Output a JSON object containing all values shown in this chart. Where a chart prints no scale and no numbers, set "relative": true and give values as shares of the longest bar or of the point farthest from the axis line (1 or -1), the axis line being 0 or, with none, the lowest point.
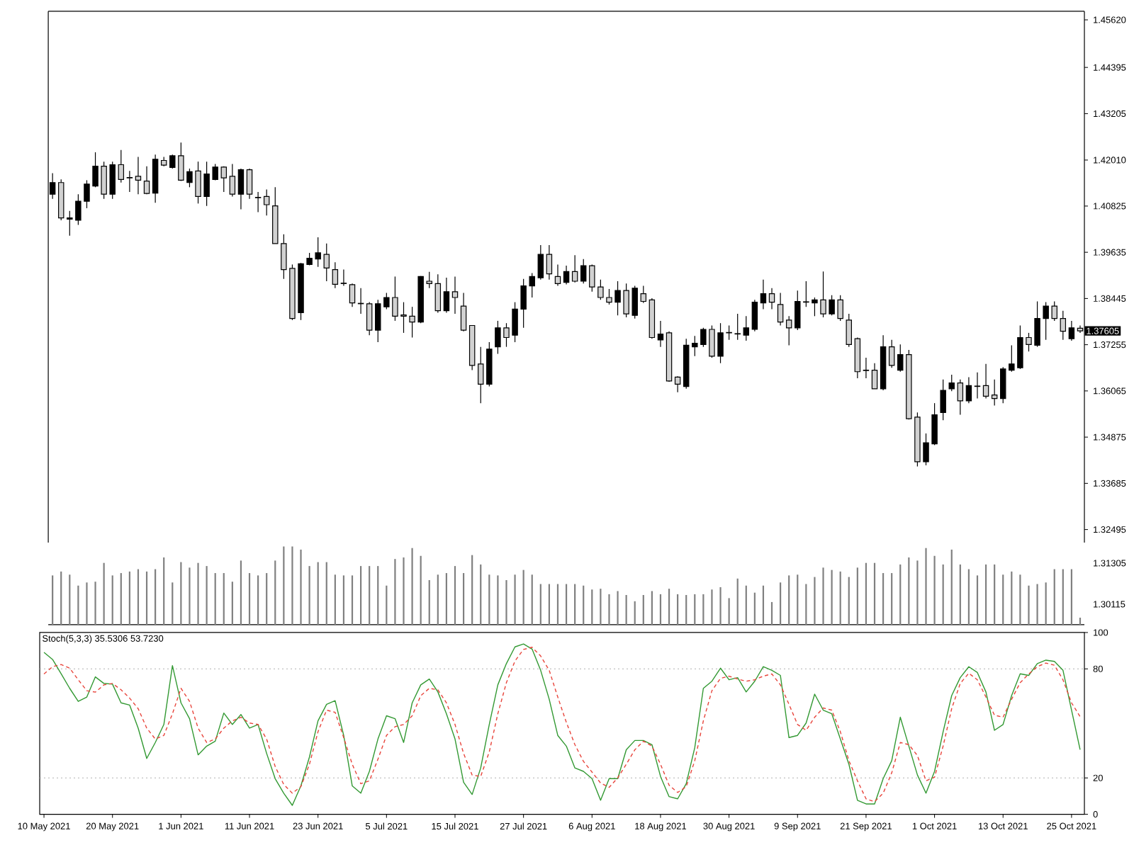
{
  "chart_data": [
    {
      "type": "candlestick",
      "categories": [
        null,
        null,
        null,
        null,
        null,
        null,
        null,
        null,
        null,
        null,
        null,
        null,
        null,
        null,
        null,
        null,
        null,
        null,
        null,
        null,
        null,
        null,
        null,
        null,
        null,
        null,
        null,
        null,
        null,
        null,
        null,
        null,
        null,
        null,
        null,
        null,
        null,
        null,
        null,
        null,
        null,
        null,
        null,
        null,
        null,
        null,
        null,
        null,
        null,
        null,
        null,
        null,
        null,
        null,
        null,
        null,
        null,
        null,
        null,
        null,
        null,
        null,
        null,
        null,
        null,
        null,
        null,
        null,
        null,
        null,
        null,
        null,
        null,
        null,
        null,
        null,
        null,
        null,
        null,
        null,
        null,
        null,
        null,
        null,
        null,
        null,
        null,
        null,
        null,
        null,
        null,
        null,
        null,
        null,
        null,
        null,
        null,
        null,
        null,
        null,
        null,
        null,
        null,
        null,
        null,
        null,
        null,
        null,
        null,
        null,
        null,
        null,
        null,
        null,
        null,
        null,
        null,
        null,
        null,
        null,
        null
      ],
      "ohlc": [
        [
          1.4113,
          1.4167,
          1.4101,
          1.4143
        ],
        [
          1.4143,
          1.4151,
          1.4046,
          1.4052
        ],
        [
          1.4049,
          1.407,
          1.4006,
          1.4052
        ],
        [
          1.4046,
          1.4113,
          1.4034,
          1.4095
        ],
        [
          1.4095,
          1.4149,
          1.4077,
          1.4139
        ],
        [
          1.4134,
          1.4221,
          1.4131,
          1.4185
        ],
        [
          1.4185,
          1.4197,
          1.4101,
          1.4113
        ],
        [
          1.4113,
          1.4197,
          1.4101,
          1.4189
        ],
        [
          1.4189,
          1.4227,
          1.4143,
          1.4151
        ],
        [
          1.4156,
          1.4173,
          1.4119,
          1.4155
        ],
        [
          1.4159,
          1.4209,
          1.4113,
          1.4149
        ],
        [
          1.4147,
          1.4185,
          1.4113,
          1.4115
        ],
        [
          1.4116,
          1.4215,
          1.4091,
          1.4203
        ],
        [
          1.42,
          1.4209,
          1.4185,
          1.4188
        ],
        [
          1.4182,
          1.4215,
          1.4179,
          1.4212
        ],
        [
          1.4212,
          1.4246,
          1.4147,
          1.4149
        ],
        [
          1.4143,
          1.4179,
          1.4131,
          1.4171
        ],
        [
          1.4173,
          1.4197,
          1.4089,
          1.4107
        ],
        [
          1.4107,
          1.4197,
          1.4083,
          1.4165
        ],
        [
          1.4151,
          1.4191,
          1.4149,
          1.4183
        ],
        [
          1.4183,
          1.4185,
          1.4119,
          1.4155
        ],
        [
          1.4159,
          1.4191,
          1.4107,
          1.4113
        ],
        [
          1.4113,
          1.4179,
          1.4074,
          1.4176
        ],
        [
          1.4176,
          1.4179,
          1.4101,
          1.4113
        ],
        [
          1.4105,
          1.4119,
          1.4067,
          1.4104
        ],
        [
          1.4107,
          1.4125,
          1.4058,
          1.4086
        ],
        [
          1.4083,
          1.4131,
          1.3986,
          1.3986
        ],
        [
          1.3986,
          1.401,
          1.3895,
          1.3919
        ],
        [
          1.3922,
          1.3932,
          1.3789,
          1.3793
        ],
        [
          1.3808,
          1.3936,
          1.3789,
          1.3934
        ],
        [
          1.3932,
          1.3962,
          1.393,
          1.3948
        ],
        [
          1.3946,
          1.4002,
          1.3926,
          1.3962
        ],
        [
          1.3958,
          1.3986,
          1.3889,
          1.3923
        ],
        [
          1.3919,
          1.3938,
          1.3871,
          1.3881
        ],
        [
          1.3884,
          1.3919,
          1.3877,
          1.3883
        ],
        [
          1.388,
          1.3883,
          1.3823,
          1.3833
        ],
        [
          1.3832,
          1.3871,
          1.3805,
          1.3831
        ],
        [
          1.3831,
          1.3835,
          1.375,
          1.3763
        ],
        [
          1.3763,
          1.3841,
          1.3732,
          1.3831
        ],
        [
          1.3823,
          1.3859,
          1.3817,
          1.3847
        ],
        [
          1.3847,
          1.3901,
          1.3787,
          1.3799
        ],
        [
          1.3802,
          1.3835,
          1.3756,
          1.3799
        ],
        [
          1.3799,
          1.3823,
          1.3744,
          1.3784
        ],
        [
          1.3784,
          1.3902,
          1.3781,
          1.3901
        ],
        [
          1.3889,
          1.3913,
          1.3871,
          1.3883
        ],
        [
          1.3883,
          1.3907,
          1.3808,
          1.3813
        ],
        [
          1.3813,
          1.3898,
          1.3808,
          1.3862
        ],
        [
          1.3862,
          1.3901,
          1.3805,
          1.3847
        ],
        [
          1.3825,
          1.3859,
          1.376,
          1.3763
        ],
        [
          1.3775,
          1.3776,
          1.366,
          1.3672
        ],
        [
          1.3676,
          1.372,
          1.3575,
          1.3624
        ],
        [
          1.3624,
          1.3732,
          1.3618,
          1.3714
        ],
        [
          1.372,
          1.3787,
          1.3702,
          1.3769
        ],
        [
          1.3769,
          1.3781,
          1.372,
          1.3744
        ],
        [
          1.375,
          1.3835,
          1.3732,
          1.3817
        ],
        [
          1.3817,
          1.3895,
          1.3769,
          1.3877
        ],
        [
          1.3877,
          1.391,
          1.3847,
          1.3901
        ],
        [
          1.3898,
          1.3982,
          1.3893,
          1.3958
        ],
        [
          1.3958,
          1.3982,
          1.3893,
          1.3908
        ],
        [
          1.3901,
          1.3932,
          1.3877,
          1.3883
        ],
        [
          1.3886,
          1.3929,
          1.3881,
          1.3914
        ],
        [
          1.3914,
          1.3956,
          1.3886,
          1.3889
        ],
        [
          1.3889,
          1.3946,
          1.3883,
          1.3929
        ],
        [
          1.3929,
          1.3932,
          1.3862,
          1.3874
        ],
        [
          1.3874,
          1.3893,
          1.3841,
          1.3847
        ],
        [
          1.3847,
          1.3869,
          1.3829,
          1.3835
        ],
        [
          1.3835,
          1.3889,
          1.3801,
          1.3865
        ],
        [
          1.3865,
          1.3883,
          1.3796,
          1.3805
        ],
        [
          1.3801,
          1.3877,
          1.3793,
          1.3871
        ],
        [
          1.3857,
          1.3877,
          1.3833,
          1.3837
        ],
        [
          1.3841,
          1.3845,
          1.3741,
          1.3744
        ],
        [
          1.3738,
          1.3787,
          1.372,
          1.3753
        ],
        [
          1.3756,
          1.376,
          1.363,
          1.3632
        ],
        [
          1.3642,
          1.3644,
          1.3603,
          1.3624
        ],
        [
          1.3618,
          1.3741,
          1.3612,
          1.3724
        ],
        [
          1.372,
          1.3748,
          1.3696,
          1.3729
        ],
        [
          1.3726,
          1.3769,
          1.372,
          1.3765
        ],
        [
          1.3765,
          1.3775,
          1.3692,
          1.3696
        ],
        [
          1.3696,
          1.3781,
          1.3678,
          1.3756
        ],
        [
          1.3756,
          1.3775,
          1.3738,
          1.3757
        ],
        [
          1.3753,
          1.3805,
          1.3738,
          1.3754
        ],
        [
          1.375,
          1.3799,
          1.3736,
          1.3769
        ],
        [
          1.3765,
          1.3841,
          1.376,
          1.3835
        ],
        [
          1.3833,
          1.3893,
          1.3817,
          1.3857
        ],
        [
          1.3857,
          1.3871,
          1.3817,
          1.3835
        ],
        [
          1.3829,
          1.3859,
          1.3775,
          1.3784
        ],
        [
          1.3789,
          1.3799,
          1.3724,
          1.3769
        ],
        [
          1.3769,
          1.3865,
          1.3763,
          1.3837
        ],
        [
          1.3835,
          1.3889,
          1.3823,
          1.3836
        ],
        [
          1.3833,
          1.3847,
          1.3799,
          1.3841
        ],
        [
          1.3841,
          1.3914,
          1.3796,
          1.3805
        ],
        [
          1.3805,
          1.3853,
          1.3801,
          1.3841
        ],
        [
          1.3841,
          1.3853,
          1.3787,
          1.3793
        ],
        [
          1.3789,
          1.3805,
          1.372,
          1.3726
        ],
        [
          1.3741,
          1.3744,
          1.3639,
          1.3656
        ],
        [
          1.366,
          1.3692,
          1.3639,
          1.3659
        ],
        [
          1.366,
          1.3678,
          1.3612,
          1.3612
        ],
        [
          1.3612,
          1.375,
          1.3608,
          1.372
        ],
        [
          1.372,
          1.3738,
          1.3666,
          1.3672
        ],
        [
          1.366,
          1.3726,
          1.3656,
          1.37
        ],
        [
          1.37,
          1.3712,
          1.3533,
          1.3535
        ],
        [
          1.3539,
          1.3551,
          1.3412,
          1.3424
        ],
        [
          1.3424,
          1.3497,
          1.3415,
          1.3473
        ],
        [
          1.347,
          1.3575,
          1.3467,
          1.3545
        ],
        [
          1.3551,
          1.3636,
          1.3531,
          1.3608
        ],
        [
          1.3612,
          1.3648,
          1.3606,
          1.3627
        ],
        [
          1.3627,
          1.3636,
          1.3545,
          1.3581
        ],
        [
          1.3581,
          1.3642,
          1.3575,
          1.362
        ],
        [
          1.3618,
          1.3654,
          1.3587,
          1.3619
        ],
        [
          1.362,
          1.3676,
          1.3587,
          1.3593
        ],
        [
          1.3596,
          1.3636,
          1.3569,
          1.3587
        ],
        [
          1.3587,
          1.3668,
          1.3575,
          1.3663
        ],
        [
          1.366,
          1.3724,
          1.3656,
          1.3676
        ],
        [
          1.3666,
          1.3775,
          1.3663,
          1.3744
        ],
        [
          1.3744,
          1.3756,
          1.3708,
          1.3726
        ],
        [
          1.3724,
          1.3837,
          1.372,
          1.3793
        ],
        [
          1.3793,
          1.3835,
          1.3738,
          1.3825
        ],
        [
          1.3825,
          1.3837,
          1.3787,
          1.3793
        ],
        [
          1.3793,
          1.3813,
          1.3738,
          1.376
        ],
        [
          1.3741,
          1.3787,
          1.3736,
          1.3769
        ],
        [
          1.3768,
          1.3775,
          1.3756,
          1.3761
        ]
      ],
      "color": "#000000",
      "ylim": [
        1.3216,
        1.4584
      ],
      "yticks": [
        {
          "value": 1.4562,
          "label": "1.45620"
        },
        1.44395,
        1.43205,
        {
          "value": 1.4201,
          "label": "1.42010"
        },
        1.40825,
        1.39635,
        1.38445,
        1.37255,
        1.36065,
        1.34875,
        1.33685,
        1.32495
      ],
      "tick_labels": "y",
      "annotations": [
        "1.37605"
      ]
    },
    {
      "type": "bar",
      "relative": true,
      "tick_labels": false,
      "color": "#808080",
      "annotations": [
        "1.31305",
        "1.30115"
      ],
      "categories": [
        null,
        null,
        null,
        null,
        null,
        null,
        null,
        null,
        null,
        null,
        null,
        null,
        null,
        null,
        null,
        null,
        null,
        null,
        null,
        null,
        null,
        null,
        null,
        null,
        null,
        null,
        null,
        null,
        null,
        null,
        null,
        null,
        null,
        null,
        null,
        null,
        null,
        null,
        null,
        null,
        null,
        null,
        null,
        null,
        null,
        null,
        null,
        null,
        null,
        null,
        null,
        null,
        null,
        null,
        null,
        null,
        null,
        null,
        null,
        null,
        null,
        null,
        null,
        null,
        null,
        null,
        null,
        null,
        null,
        null,
        null,
        null,
        null,
        null,
        null,
        null,
        null,
        null,
        null,
        null,
        null,
        null,
        null,
        null,
        null,
        null,
        null,
        null,
        null,
        null,
        null,
        null,
        null,
        null,
        null,
        null,
        null,
        null,
        null,
        null,
        null,
        null,
        null,
        null,
        null,
        null,
        null,
        null,
        null,
        null,
        null,
        null,
        null,
        null,
        null,
        null,
        null,
        null,
        null,
        null,
        null
      ],
      "values": [
        0.63,
        0.68,
        0.64,
        0.5,
        0.54,
        0.55,
        0.79,
        0.63,
        0.66,
        0.68,
        0.71,
        0.68,
        0.71,
        0.86,
        0.54,
        0.8,
        0.73,
        0.79,
        0.75,
        0.66,
        0.66,
        0.55,
        0.82,
        0.66,
        0.63,
        0.66,
        0.82,
        1,
        1,
        0.96,
        0.75,
        0.8,
        0.8,
        0.64,
        0.63,
        0.63,
        0.75,
        0.75,
        0.75,
        0.5,
        0.84,
        0.86,
        0.98,
        0.88,
        0.57,
        0.64,
        0.66,
        0.75,
        0.66,
        0.89,
        0.77,
        0.64,
        0.63,
        0.57,
        0.64,
        0.7,
        0.64,
        0.52,
        0.52,
        0.52,
        0.52,
        0.52,
        0.5,
        0.45,
        0.46,
        0.39,
        0.43,
        0.38,
        0.3,
        0.38,
        0.43,
        0.39,
        0.46,
        0.39,
        0.38,
        0.39,
        0.39,
        0.45,
        0.48,
        0.34,
        0.59,
        0.5,
        0.41,
        0.5,
        0.29,
        0.54,
        0.63,
        0.64,
        0.52,
        0.61,
        0.73,
        0.7,
        0.68,
        0.61,
        0.73,
        0.79,
        0.79,
        0.66,
        0.66,
        0.77,
        0.86,
        0.82,
        0.98,
        0.88,
        0.77,
        0.96,
        0.77,
        0.71,
        0.63,
        0.77,
        0.77,
        0.64,
        0.68,
        0.64,
        0.5,
        0.52,
        0.54,
        0.71,
        0.71,
        0.71,
        0.09
      ]
    },
    {
      "type": "line",
      "title": "Stoch(5,3,3) 35.5306 53.7230",
      "categories": [
        "10 May 2021",
        null,
        null,
        null,
        null,
        null,
        null,
        null,
        "20 May 2021",
        null,
        null,
        null,
        null,
        null,
        null,
        null,
        "1 Jun 2021",
        null,
        null,
        null,
        null,
        null,
        null,
        null,
        "11 Jun 2021",
        null,
        null,
        null,
        null,
        null,
        null,
        null,
        "23 Jun 2021",
        null,
        null,
        null,
        null,
        null,
        null,
        null,
        "5 Jul 2021",
        null,
        null,
        null,
        null,
        null,
        null,
        null,
        "15 Jul 2021",
        null,
        null,
        null,
        null,
        null,
        null,
        null,
        "27 Jul 2021",
        null,
        null,
        null,
        null,
        null,
        null,
        null,
        "6 Aug 2021",
        null,
        null,
        null,
        null,
        null,
        null,
        null,
        "18 Aug 2021",
        null,
        null,
        null,
        null,
        null,
        null,
        null,
        "30 Aug 2021",
        null,
        null,
        null,
        null,
        null,
        null,
        null,
        "9 Sep 2021",
        null,
        null,
        null,
        null,
        null,
        null,
        null,
        "21 Sep 2021",
        null,
        null,
        null,
        null,
        null,
        null,
        null,
        "1 Oct 2021",
        null,
        null,
        null,
        null,
        null,
        null,
        null,
        "13 Oct 2021",
        null,
        null,
        null,
        null,
        null,
        null,
        null,
        "25 Oct 2021",
        null
      ],
      "series": [
        {
          "color": "#339933",
          "line_style": "solid",
          "values": [
            89.1,
            85.2,
            77.3,
            69.3,
            62.1,
            64.5,
            75.6,
            72.0,
            71.6,
            61.3,
            60.1,
            47.4,
            30.7,
            39.5,
            49.4,
            81.8,
            61.3,
            52.6,
            32.7,
            37.5,
            40.2,
            55.7,
            49.4,
            54.9,
            47.4,
            49.4,
            33.5,
            19.6,
            11.6,
            4.9,
            15.6,
            31.5,
            51.4,
            60.5,
            62.5,
            43.4,
            15.6,
            11.6,
            23.6,
            41.4,
            54.2,
            52.6,
            39.5,
            61.3,
            71.2,
            74.4,
            67.3,
            55.3,
            41.4,
            17.6,
            10.9,
            25.5,
            49.4,
            71.2,
            82.9,
            92.1,
            93.7,
            90.9,
            79.2,
            63.3,
            43.4,
            37.5,
            25.5,
            23.6,
            19.6,
            7.7,
            19.6,
            19.6,
            35.5,
            40.6,
            40.6,
            38.3,
            20.8,
            9.7,
            8.5,
            16.8,
            36.7,
            69.3,
            73.2,
            80.4,
            74.0,
            75.2,
            67.3,
            73.2,
            81.2,
            79.2,
            76.4,
            42.2,
            43.4,
            50.2,
            66.1,
            57.3,
            55.3,
            41.4,
            27.5,
            7.7,
            5.7,
            5.7,
            19.6,
            29.5,
            53.4,
            37.5,
            21.6,
            11.6,
            23.6,
            45.4,
            65.3,
            75.2,
            81.2,
            78.0,
            67.3,
            46.2,
            49.4,
            65.3,
            77.3,
            76.4,
            82.9,
            84.8,
            84.1,
            79.2,
            57.3,
            35.5306
          ]
        },
        {
          "color": "#e8453c",
          "line_style": "dashed",
          "values": [
            77.2,
            81.2,
            82.4,
            80.4,
            74.0,
            68.0,
            67.2,
            71.2,
            72.0,
            68.5,
            63.9,
            58.1,
            47.4,
            41.4,
            43.4,
            55.3,
            69.3,
            62.1,
            47.4,
            39.5,
            41.4,
            47.4,
            51.4,
            53.4,
            50.2,
            49.4,
            41.4,
            26.3,
            16.4,
            11.6,
            15.2,
            27.5,
            45.4,
            57.3,
            56.1,
            42.2,
            27.5,
            16.8,
            18.4,
            30.3,
            43.4,
            48.2,
            49.4,
            54.2,
            65.3,
            69.3,
            68.5,
            61.3,
            49.4,
            33.5,
            21.6,
            20.8,
            34.3,
            55.3,
            72.4,
            84.3,
            90.7,
            91.9,
            87.1,
            79.2,
            64.5,
            50.6,
            38.3,
            29.1,
            23.2,
            17.2,
            14.8,
            20.0,
            27.5,
            35.5,
            40.2,
            37.5,
            27.5,
            16.0,
            12.0,
            15.2,
            29.5,
            51.4,
            68.0,
            74.8,
            76.0,
            74.4,
            73.2,
            74.0,
            76.0,
            77.2,
            71.2,
            60.5,
            49.4,
            46.2,
            53.4,
            58.5,
            57.3,
            45.4,
            29.5,
            18.4,
            8.5,
            6.9,
            11.6,
            22.8,
            39.5,
            38.3,
            32.3,
            18.4,
            20.4,
            37.5,
            58.1,
            72.0,
            77.6,
            74.0,
            64.5,
            54.5,
            53.4,
            63.3,
            72.4,
            77.2,
            81.2,
            83.2,
            82.0,
            74.0,
            61.3,
            53.723
          ]
        }
      ],
      "ylim": [
        0,
        100
      ],
      "yticks": [
        0,
        20,
        80,
        100
      ],
      "ref_lines": [
        {
          "axis": "y",
          "value": 20,
          "color": "#b0b0b0",
          "line_style": "dotted"
        },
        {
          "axis": "y",
          "value": 80,
          "color": "#b0b0b0",
          "line_style": "dotted"
        }
      ]
    }
  ]
}
